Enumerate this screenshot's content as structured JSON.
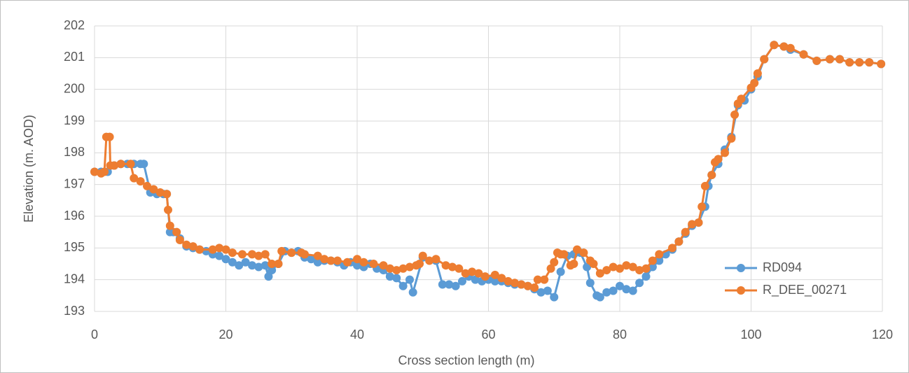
{
  "chart_data": {
    "type": "line",
    "x_label": "Cross section length (m)",
    "y_label": "Elevation (m. AOD)",
    "xlim": [
      0,
      120
    ],
    "xticks": [
      0,
      20,
      40,
      60,
      80,
      100,
      120
    ],
    "ylim": [
      193,
      202
    ],
    "yticks": [
      193,
      194,
      195,
      196,
      197,
      198,
      199,
      200,
      201,
      202
    ],
    "grid": true,
    "legend": "lower right",
    "series": [
      {
        "name": "RD094",
        "color": "#5b9bd5",
        "x": [
          0,
          1,
          2,
          3,
          4,
          5,
          6,
          7,
          7.5,
          8.5,
          9.5,
          10.5,
          11,
          11.5,
          12,
          13,
          14,
          15,
          16,
          17,
          18,
          19,
          20,
          21,
          22,
          23,
          24,
          25,
          26,
          26.5,
          27,
          28,
          29,
          30,
          31,
          32,
          33,
          34,
          35,
          36,
          37,
          38,
          39,
          40,
          41,
          42,
          43,
          44,
          45,
          46,
          47,
          48,
          48.5,
          50,
          52,
          53,
          54,
          55,
          56,
          57,
          58,
          59,
          60,
          61,
          62,
          63,
          64,
          65,
          66,
          67,
          68,
          69,
          70,
          71,
          72,
          73,
          74,
          75,
          75.5,
          76.5,
          77,
          78,
          79,
          80,
          81,
          82,
          83,
          84,
          85,
          86,
          87,
          88,
          89,
          90,
          91,
          92,
          93,
          93.5,
          94,
          95,
          96,
          97,
          98,
          99,
          100,
          101,
          102,
          103.5,
          105,
          106,
          108,
          110,
          112,
          113.5,
          115,
          116.5,
          118,
          119.8
        ],
        "values": [
          197.4,
          197.4,
          197.4,
          197.6,
          197.65,
          197.65,
          197.65,
          197.65,
          197.65,
          196.75,
          196.7,
          196.7,
          196.7,
          195.5,
          195.5,
          195.3,
          195.05,
          195.0,
          194.95,
          194.9,
          194.8,
          194.75,
          194.65,
          194.55,
          194.45,
          194.55,
          194.45,
          194.4,
          194.45,
          194.1,
          194.3,
          194.5,
          194.9,
          194.85,
          194.9,
          194.7,
          194.65,
          194.55,
          194.6,
          194.6,
          194.55,
          194.45,
          194.55,
          194.45,
          194.4,
          194.5,
          194.35,
          194.3,
          194.1,
          194.05,
          193.8,
          194.0,
          193.6,
          194.7,
          194.6,
          193.85,
          193.85,
          193.8,
          193.95,
          194.1,
          194.0,
          193.95,
          194.0,
          193.95,
          193.95,
          193.9,
          193.85,
          193.85,
          193.8,
          193.7,
          193.6,
          193.65,
          193.45,
          194.25,
          194.75,
          194.8,
          194.85,
          194.4,
          193.9,
          193.5,
          193.45,
          193.6,
          193.65,
          193.8,
          193.7,
          193.65,
          193.9,
          194.1,
          194.4,
          194.6,
          194.8,
          194.95,
          195.2,
          195.45,
          195.7,
          195.8,
          196.3,
          196.95,
          197.3,
          197.65,
          198.1,
          198.5,
          199.5,
          199.65,
          200.0,
          200.4,
          200.95,
          201.4,
          201.35,
          201.25,
          201.1,
          200.9,
          200.95,
          200.95,
          200.85,
          200.85,
          200.85,
          200.8
        ]
      },
      {
        "name": "R_DEE_00271",
        "color": "#ed7d31",
        "x": [
          0,
          1,
          1.5,
          1.8,
          2.3,
          2.4,
          3,
          4,
          5.5,
          6,
          7,
          8,
          9,
          10,
          11,
          11.2,
          11.5,
          12.5,
          13,
          14,
          15,
          16,
          18,
          19,
          20,
          21,
          22.5,
          24,
          25,
          26,
          27,
          28,
          28.5,
          30,
          31.5,
          32,
          34,
          35,
          36,
          37,
          38.5,
          40,
          41,
          42.5,
          44,
          45,
          46,
          47,
          48,
          49,
          49.5,
          50,
          51,
          52,
          53.5,
          54.5,
          55.5,
          56.5,
          57.5,
          58.5,
          59.5,
          61,
          62,
          63,
          64,
          65,
          66,
          67,
          67.5,
          68.5,
          69.5,
          70,
          70.5,
          71,
          71.5,
          72.5,
          73,
          73.5,
          74.5,
          75.5,
          76,
          77,
          78,
          79,
          80,
          81,
          82,
          83,
          84,
          85,
          86,
          88,
          89,
          90,
          91,
          92,
          92.5,
          93,
          94,
          94.5,
          95,
          96,
          97,
          97.5,
          98,
          98.5,
          100,
          100.5,
          101,
          102,
          103.5,
          105,
          106,
          108,
          110,
          112,
          113.5,
          115,
          116.5,
          118,
          119.8
        ],
        "values": [
          197.4,
          197.35,
          197.4,
          198.5,
          198.5,
          197.6,
          197.6,
          197.65,
          197.65,
          197.2,
          197.1,
          196.95,
          196.85,
          196.75,
          196.7,
          196.2,
          195.7,
          195.5,
          195.25,
          195.1,
          195.05,
          194.95,
          194.95,
          195.0,
          194.95,
          194.85,
          194.8,
          194.8,
          194.75,
          194.8,
          194.5,
          194.5,
          194.9,
          194.85,
          194.85,
          194.8,
          194.75,
          194.65,
          194.6,
          194.6,
          194.55,
          194.65,
          194.55,
          194.5,
          194.45,
          194.35,
          194.3,
          194.35,
          194.4,
          194.45,
          194.5,
          194.75,
          194.6,
          194.65,
          194.45,
          194.4,
          194.35,
          194.2,
          194.25,
          194.2,
          194.1,
          194.15,
          194.05,
          193.95,
          193.9,
          193.85,
          193.8,
          193.75,
          194.0,
          194.0,
          194.35,
          194.55,
          194.85,
          194.8,
          194.8,
          194.45,
          194.5,
          194.95,
          194.85,
          194.6,
          194.5,
          194.2,
          194.3,
          194.4,
          194.35,
          194.45,
          194.4,
          194.3,
          194.35,
          194.6,
          194.8,
          195.0,
          195.2,
          195.5,
          195.75,
          195.8,
          196.3,
          196.95,
          197.3,
          197.7,
          197.8,
          198.0,
          198.45,
          199.2,
          199.55,
          199.7,
          200.05,
          200.2,
          200.5,
          200.95,
          201.4,
          201.35,
          201.3,
          201.1,
          200.9,
          200.95,
          200.95,
          200.85,
          200.85,
          200.85,
          200.8
        ]
      }
    ]
  }
}
